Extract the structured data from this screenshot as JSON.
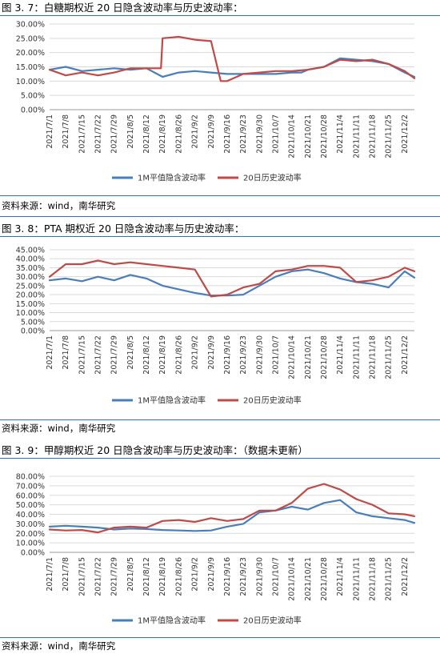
{
  "charts": [
    {
      "title": "图 3. 7：白糖期权近 20 日隐含波动率与历史波动率：",
      "source": "资料来源：wind，南华研究"
    },
    {
      "title": "图 3. 8：PTA 期权近 20 日隐含波动率与历史波动率：",
      "source": "资料来源：wind，南华研究"
    },
    {
      "title": "图 3. 9：甲醇期权近 20 日隐含波动率与历史波动率：（数据未更新）",
      "source": "资料来源：wind，南华研究"
    }
  ],
  "colors": {
    "implied": "#4a7ebb",
    "historical": "#be4b48",
    "rule": "#2e74b5",
    "grid": "#d9d9d9"
  },
  "chart_data": [
    {
      "type": "line",
      "title": "图 3. 7：白糖期权近 20 日隐含波动率与历史波动率：",
      "x_ticks": [
        "2021/7/1",
        "2021/7/8",
        "2021/7/15",
        "2021/7/22",
        "2021/7/29",
        "2021/8/5",
        "2021/8/12",
        "2021/8/19",
        "2021/8/26",
        "2021/9/2",
        "2021/9/9",
        "2021/9/16",
        "2021/9/23",
        "2021/9/30",
        "2021/10/7",
        "2021/10/14",
        "2021/10/21",
        "2021/10/28",
        "2021/11/4",
        "2021/11/11",
        "2021/11/18",
        "2021/11/25",
        "2021/12/2"
      ],
      "y_ticks": [
        "0.00%",
        "5.00%",
        "10.00%",
        "15.00%",
        "20.00%",
        "25.00%",
        "30.00%"
      ],
      "ylim": [
        0,
        0.3
      ],
      "legend_position": "bottom",
      "series": [
        {
          "name": "1M平值隐含波动率",
          "color": "#4a7ebb",
          "x": [
            0,
            1,
            2,
            3,
            4,
            5,
            6,
            7,
            8,
            9,
            10,
            11,
            12,
            13,
            14,
            15,
            15.6,
            16,
            17,
            18,
            19,
            20,
            21,
            22,
            22.6
          ],
          "values": [
            0.14,
            0.15,
            0.135,
            0.14,
            0.145,
            0.14,
            0.145,
            0.115,
            0.13,
            0.135,
            0.13,
            0.125,
            0.125,
            0.125,
            0.125,
            0.13,
            0.13,
            0.14,
            0.15,
            0.18,
            0.175,
            0.17,
            0.16,
            0.13,
            0.115
          ]
        },
        {
          "name": "20日历史波动率",
          "color": "#be4b48",
          "x": [
            0,
            1,
            2,
            3,
            4,
            5,
            6,
            6.9,
            7,
            8,
            9,
            10,
            10.6,
            11,
            12,
            13,
            14,
            15,
            16,
            17,
            18,
            19,
            20,
            21,
            22,
            22.6
          ],
          "values": [
            0.14,
            0.12,
            0.13,
            0.12,
            0.13,
            0.145,
            0.145,
            0.145,
            0.25,
            0.255,
            0.245,
            0.24,
            0.1,
            0.1,
            0.125,
            0.13,
            0.135,
            0.135,
            0.14,
            0.15,
            0.175,
            0.17,
            0.175,
            0.16,
            0.135,
            0.11
          ]
        }
      ]
    },
    {
      "type": "line",
      "title": "图 3. 8：PTA 期权近 20 日隐含波动率与历史波动率：",
      "x_ticks": [
        "2021/7/1",
        "2021/7/8",
        "2021/7/15",
        "2021/7/22",
        "2021/7/29",
        "2021/8/5",
        "2021/8/12",
        "2021/8/19",
        "2021/8/26",
        "2021/9/2",
        "2021/9/9",
        "2021/9/16",
        "2021/9/23",
        "2021/9/30",
        "2021/10/7",
        "2021/10/14",
        "2021/10/21",
        "2021/10/28",
        "2021/11/4",
        "2021/11/11",
        "2021/11/18",
        "2021/11/25",
        "2021/12/2"
      ],
      "y_ticks": [
        "0.00%",
        "5.00%",
        "10.00%",
        "15.00%",
        "20.00%",
        "25.00%",
        "30.00%",
        "35.00%",
        "40.00%",
        "45.00%"
      ],
      "ylim": [
        0,
        0.45
      ],
      "legend_position": "bottom",
      "series": [
        {
          "name": "1M平值隐含波动率",
          "color": "#4a7ebb",
          "x": [
            0,
            1,
            2,
            3,
            4,
            5,
            6,
            7,
            8,
            9,
            10,
            11,
            12,
            13,
            14,
            15,
            16,
            17,
            18,
            19,
            20,
            21,
            22,
            22.6
          ],
          "values": [
            0.28,
            0.29,
            0.275,
            0.3,
            0.28,
            0.31,
            0.29,
            0.25,
            0.23,
            0.21,
            0.195,
            0.195,
            0.2,
            0.25,
            0.3,
            0.33,
            0.34,
            0.32,
            0.29,
            0.27,
            0.26,
            0.24,
            0.33,
            0.295
          ]
        },
        {
          "name": "20日历史波动率",
          "color": "#be4b48",
          "x": [
            0,
            1,
            2,
            3,
            4,
            5,
            6,
            7,
            8,
            9,
            10,
            11,
            12,
            13,
            14,
            15,
            16,
            17,
            18,
            19,
            20,
            21,
            22,
            22.6
          ],
          "values": [
            0.3,
            0.37,
            0.37,
            0.39,
            0.37,
            0.38,
            0.37,
            0.36,
            0.35,
            0.34,
            0.19,
            0.2,
            0.24,
            0.26,
            0.33,
            0.34,
            0.36,
            0.36,
            0.35,
            0.27,
            0.28,
            0.3,
            0.35,
            0.33
          ]
        }
      ]
    },
    {
      "type": "line",
      "title": "图 3. 9：甲醇期权近 20 日隐含波动率与历史波动率：（数据未更新）",
      "x_ticks": [
        "2021/7/1",
        "2021/7/8",
        "2021/7/15",
        "2021/7/22",
        "2021/7/29",
        "2021/8/5",
        "2021/8/12",
        "2021/8/19",
        "2021/8/26",
        "2021/9/2",
        "2021/9/9",
        "2021/9/16",
        "2021/9/23",
        "2021/9/30",
        "2021/10/7",
        "2021/10/14",
        "2021/10/21",
        "2021/10/28",
        "2021/11/4",
        "2021/11/11",
        "2021/11/18",
        "2021/11/25",
        "2021/12/2"
      ],
      "y_ticks": [
        "0.00%",
        "10.00%",
        "20.00%",
        "30.00%",
        "40.00%",
        "50.00%",
        "60.00%",
        "70.00%",
        "80.00%"
      ],
      "ylim": [
        0,
        0.8
      ],
      "legend_position": "bottom",
      "series": [
        {
          "name": "1M平值隐含波动率",
          "color": "#4a7ebb",
          "x": [
            0,
            1,
            2,
            3,
            4,
            5,
            6,
            7,
            8,
            9,
            10,
            11,
            12,
            13,
            14,
            15,
            16,
            17,
            18,
            19,
            20,
            21,
            22,
            22.6
          ],
          "values": [
            0.27,
            0.28,
            0.27,
            0.26,
            0.24,
            0.25,
            0.245,
            0.235,
            0.23,
            0.225,
            0.23,
            0.27,
            0.3,
            0.42,
            0.44,
            0.48,
            0.45,
            0.52,
            0.55,
            0.42,
            0.38,
            0.36,
            0.34,
            0.31
          ]
        },
        {
          "name": "20日历史波动率",
          "color": "#be4b48",
          "x": [
            0,
            1,
            2,
            3,
            4,
            5,
            6,
            7,
            8,
            9,
            10,
            11,
            12,
            13,
            14,
            15,
            16,
            17,
            18,
            19,
            20,
            21,
            22,
            22.6
          ],
          "values": [
            0.24,
            0.23,
            0.235,
            0.21,
            0.26,
            0.27,
            0.26,
            0.33,
            0.34,
            0.32,
            0.36,
            0.33,
            0.35,
            0.44,
            0.44,
            0.52,
            0.67,
            0.72,
            0.66,
            0.56,
            0.5,
            0.41,
            0.4,
            0.38
          ]
        }
      ]
    }
  ]
}
